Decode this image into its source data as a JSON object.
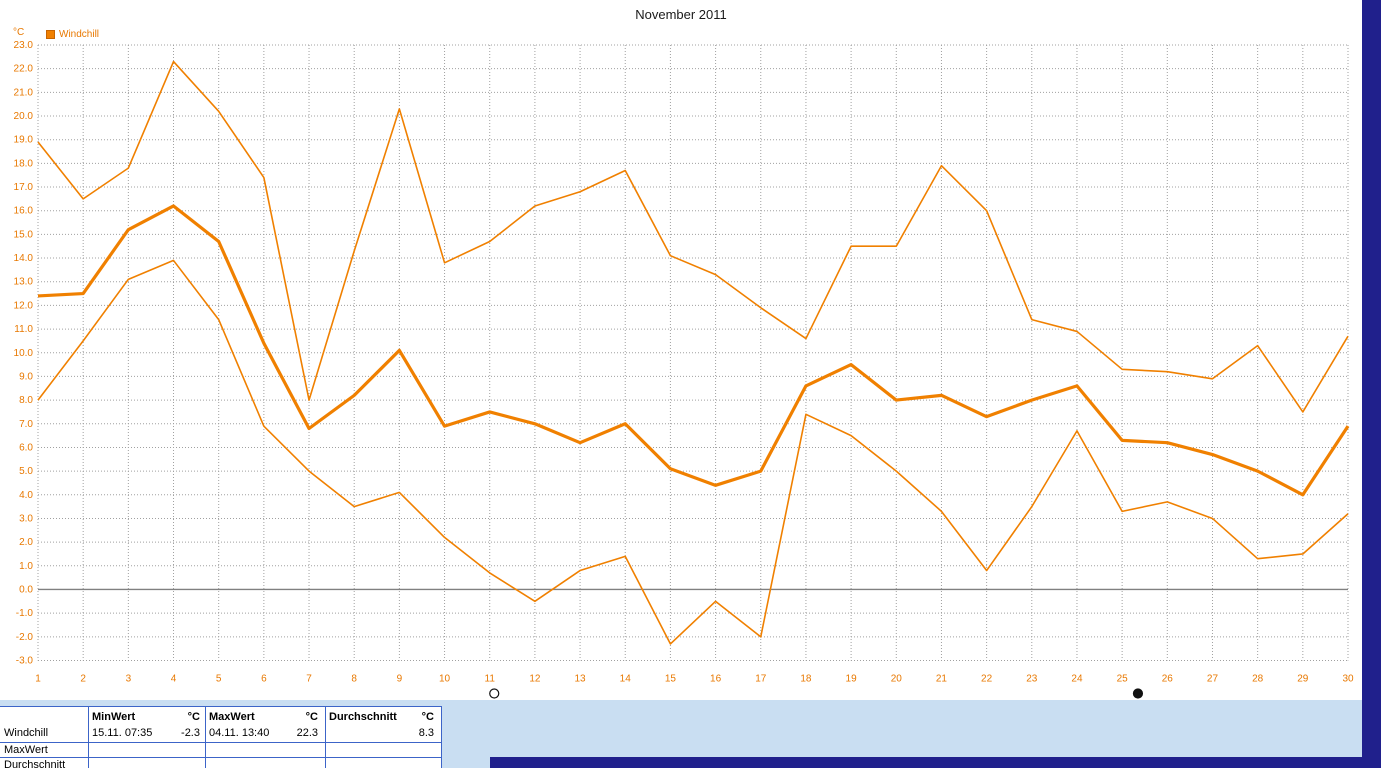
{
  "window": {
    "title": "November 2011"
  },
  "chart_data": {
    "type": "line",
    "title": "November 2011",
    "unit_label": "°C",
    "legend": [
      {
        "label": "Windchill",
        "color": "#F08000"
      }
    ],
    "axis_color": "#E87800",
    "grid": true,
    "x": [
      1,
      2,
      3,
      4,
      5,
      6,
      7,
      8,
      9,
      10,
      11,
      12,
      13,
      14,
      15,
      16,
      17,
      18,
      19,
      20,
      21,
      22,
      23,
      24,
      25,
      26,
      27,
      28,
      29,
      30
    ],
    "xlabel": "",
    "ylabel": "°C",
    "ylim": [
      -3.0,
      23.0
    ],
    "ytick_step": 1.0,
    "series": [
      {
        "name": "MaxWert",
        "color": "#F08000",
        "width": 1.6,
        "values": [
          18.9,
          16.5,
          17.8,
          22.3,
          20.2,
          17.4,
          8.0,
          14.3,
          20.3,
          13.8,
          14.7,
          16.2,
          16.8,
          17.7,
          14.1,
          13.3,
          11.9,
          10.6,
          14.5,
          14.5,
          17.9,
          16.0,
          11.4,
          10.9,
          9.3,
          9.2,
          8.9,
          10.3,
          7.5,
          10.7
        ]
      },
      {
        "name": "Windchill-Durchschnitt",
        "color": "#F08000",
        "width": 3.2,
        "values": [
          12.4,
          12.5,
          15.2,
          16.2,
          14.7,
          10.4,
          6.8,
          8.2,
          10.1,
          6.9,
          7.5,
          7.0,
          6.2,
          7.0,
          5.1,
          4.4,
          5.0,
          8.6,
          9.5,
          8.0,
          8.2,
          7.3,
          8.0,
          8.6,
          6.3,
          6.2,
          5.7,
          5.0,
          4.0,
          6.9
        ]
      },
      {
        "name": "MinWert",
        "color": "#F08000",
        "width": 1.6,
        "values": [
          8.0,
          10.5,
          13.1,
          13.9,
          11.4,
          6.9,
          5.0,
          3.5,
          4.1,
          2.2,
          0.7,
          -0.5,
          0.8,
          1.4,
          -2.3,
          -0.5,
          -2.0,
          7.4,
          6.5,
          5.0,
          3.3,
          0.8,
          3.5,
          6.7,
          3.3,
          3.7,
          3.0,
          1.3,
          1.5,
          3.2
        ]
      }
    ],
    "moon_markers": [
      {
        "day": 11.1,
        "phase": "full"
      },
      {
        "day": 25.35,
        "phase": "new"
      }
    ]
  },
  "stats": {
    "row_labels": [
      "Windchill",
      "MaxWert",
      "Durchschnitt"
    ],
    "columns": [
      {
        "header": "MinWert",
        "unit_header": "°C",
        "datetime": "15.11.  07:35",
        "value": "-2.3"
      },
      {
        "header": "MaxWert",
        "unit_header": "°C",
        "datetime": "04.11.  13:40",
        "value": "22.3"
      },
      {
        "header": "Durchschnitt",
        "unit_header": "°C",
        "datetime": "",
        "value": "8.3"
      }
    ]
  }
}
